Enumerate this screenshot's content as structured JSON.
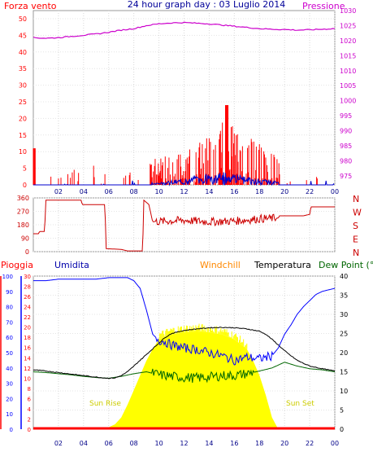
{
  "colors": {
    "wind": "#ff0000",
    "wind_bars": "#ff0000",
    "gust": "#0000cc",
    "pressure": "#cc00cc",
    "direction": "#cc0000",
    "rain": "#ff0000",
    "humidity": "#0000ff",
    "windchill": "#ff8800",
    "temperature": "#000000",
    "dewpoint": "#006600",
    "solar": "#ffff00",
    "solar_label": "#cccc00",
    "frame": "#999999",
    "background": "#ffffff"
  },
  "chart_data": [
    {
      "type": "line",
      "panel": "wind-pressure",
      "title": "24 hour graph day : 03 Luglio 2014",
      "left_axis_label": "Forza vento",
      "right_axis_label": "Pressione",
      "x_ticks": [
        "02",
        "04",
        "06",
        "08",
        "10",
        "12",
        "14",
        "16",
        "18",
        "20",
        "22",
        "00"
      ],
      "left_ticks": [
        "0",
        "5",
        "10",
        "15",
        "20",
        "25",
        "30",
        "35",
        "40",
        "45",
        "50"
      ],
      "right_ticks": [
        "975",
        "980",
        "985",
        "990",
        "995",
        "1000",
        "1005",
        "1010",
        "1015",
        "1020",
        "1025",
        "1030"
      ],
      "ylim_left": [
        0,
        50
      ],
      "ylim_right": [
        972,
        1030
      ],
      "grid": true,
      "pressure": {
        "x": [
          0,
          1,
          2,
          3,
          4,
          5,
          6,
          7,
          8,
          9,
          10,
          11,
          12,
          13,
          14,
          15,
          16,
          17,
          18,
          19,
          20,
          21,
          22,
          23,
          24
        ],
        "values": [
          1021.0,
          1020.8,
          1021.0,
          1021.4,
          1021.8,
          1022.2,
          1022.8,
          1023.5,
          1024.0,
          1025.0,
          1025.6,
          1025.9,
          1026.0,
          1025.8,
          1025.6,
          1025.2,
          1024.8,
          1024.4,
          1024.0,
          1023.8,
          1023.7,
          1023.5,
          1023.6,
          1023.8,
          1024.0
        ]
      },
      "wind_gust_max": 24
    },
    {
      "type": "line",
      "panel": "wind-direction",
      "left_ticks": [
        "0",
        "90",
        "180",
        "270",
        "360"
      ],
      "right_labels": [
        "N",
        "W",
        "S",
        "E",
        "N"
      ],
      "ylim": [
        0,
        360
      ],
      "grid": true,
      "direction": {
        "x": [
          0,
          0.4,
          0.5,
          0.9,
          1.0,
          3.8,
          3.9,
          5.7,
          5.8,
          7.0,
          7.5,
          8.7,
          8.8,
          9.2,
          9.5,
          12,
          14,
          16,
          18,
          19.5,
          19.6,
          21.5,
          22,
          22.1,
          24
        ],
        "values": [
          120,
          120,
          135,
          135,
          345,
          345,
          315,
          315,
          20,
          15,
          5,
          5,
          345,
          315,
          200,
          210,
          200,
          205,
          220,
          225,
          240,
          240,
          250,
          300,
          300
        ]
      }
    },
    {
      "type": "line",
      "panel": "temperature-humidity",
      "legend": [
        "Pioggia",
        "Umidita",
        "Windchill",
        "Temperatura",
        "Dew Point (°C"
      ],
      "x_ticks": [
        "02",
        "04",
        "06",
        "08",
        "10",
        "12",
        "14",
        "16",
        "18",
        "20",
        "22",
        "00"
      ],
      "left_ticks_rain": [
        "0",
        "2",
        "4",
        "6",
        "8",
        "10",
        "12",
        "14",
        "16",
        "18",
        "20",
        "22",
        "24",
        "26",
        "28",
        "30"
      ],
      "left_ticks_humidity": [
        "0",
        "10",
        "20",
        "30",
        "40",
        "50",
        "60",
        "70",
        "80",
        "90",
        "100"
      ],
      "right_ticks": [
        "0",
        "5",
        "10",
        "15",
        "20",
        "25",
        "30",
        "35",
        "40"
      ],
      "ylim_temperature": [
        0,
        40
      ],
      "ylim_humidity": [
        0,
        100
      ],
      "annotations": [
        "Sun Rise",
        "Sun Set"
      ],
      "grid": true,
      "humidity": {
        "x": [
          0,
          1,
          2,
          3,
          4,
          5,
          6,
          7,
          7.5,
          8,
          8.5,
          9.0,
          9.5,
          10,
          10.5,
          11,
          12,
          13,
          14,
          15,
          16,
          17,
          18,
          19,
          19.5,
          20,
          20.5,
          21,
          21.5,
          22,
          22.5,
          23,
          24
        ],
        "values": [
          97,
          97,
          98,
          98,
          98,
          98,
          99,
          99,
          99,
          97,
          92,
          78,
          62,
          58,
          57,
          55,
          53,
          52,
          50,
          48,
          45,
          47,
          46,
          48,
          53,
          62,
          68,
          75,
          80,
          84,
          88,
          90,
          92
        ]
      },
      "temperature": {
        "x": [
          0,
          1,
          2,
          3,
          4,
          5,
          6,
          6.5,
          7,
          7.5,
          8,
          8.5,
          9,
          9.5,
          10,
          10.5,
          11,
          12,
          13,
          14,
          15,
          16,
          17,
          18,
          18.5,
          19,
          19.5,
          20,
          20.5,
          21,
          21.5,
          22,
          23,
          24
        ],
        "values": [
          15.5,
          15.2,
          14.8,
          14.4,
          14.0,
          13.6,
          13.3,
          13.4,
          14.0,
          15.0,
          16.5,
          18.0,
          19.5,
          21.0,
          22.5,
          24.0,
          25.0,
          25.8,
          26.2,
          26.5,
          26.6,
          26.5,
          26.2,
          25.6,
          24.8,
          23.5,
          22.0,
          20.5,
          19.2,
          18.0,
          17.2,
          16.5,
          15.8,
          15.2
        ]
      },
      "dewpoint": {
        "x": [
          0,
          1,
          2,
          3,
          4,
          5,
          6,
          7,
          8,
          9,
          10,
          11,
          12,
          13,
          14,
          15,
          16,
          17,
          18,
          19,
          20,
          21,
          22,
          23,
          24
        ],
        "values": [
          15.0,
          14.8,
          14.5,
          14.2,
          13.8,
          13.5,
          13.3,
          13.8,
          14.5,
          15.0,
          14.2,
          13.8,
          13.5,
          13.4,
          13.6,
          14.0,
          14.0,
          14.5,
          15.2,
          16.0,
          17.5,
          16.5,
          15.8,
          15.5,
          15.0
        ]
      },
      "solar_radiation_relative": {
        "x": [
          5.5,
          6,
          6.5,
          7,
          7.5,
          8,
          8.5,
          9,
          9.5,
          10,
          11,
          12,
          13,
          14,
          15,
          16,
          17,
          17.5,
          18,
          18.5,
          19,
          19.5
        ],
        "values": [
          0,
          0.02,
          0.05,
          0.12,
          0.25,
          0.4,
          0.55,
          0.7,
          0.82,
          0.92,
          0.97,
          0.99,
          1,
          0.99,
          0.97,
          0.92,
          0.82,
          0.7,
          0.55,
          0.35,
          0.12,
          0
        ]
      },
      "rain": {
        "x": [
          0,
          24
        ],
        "values": [
          0,
          0
        ]
      }
    }
  ]
}
